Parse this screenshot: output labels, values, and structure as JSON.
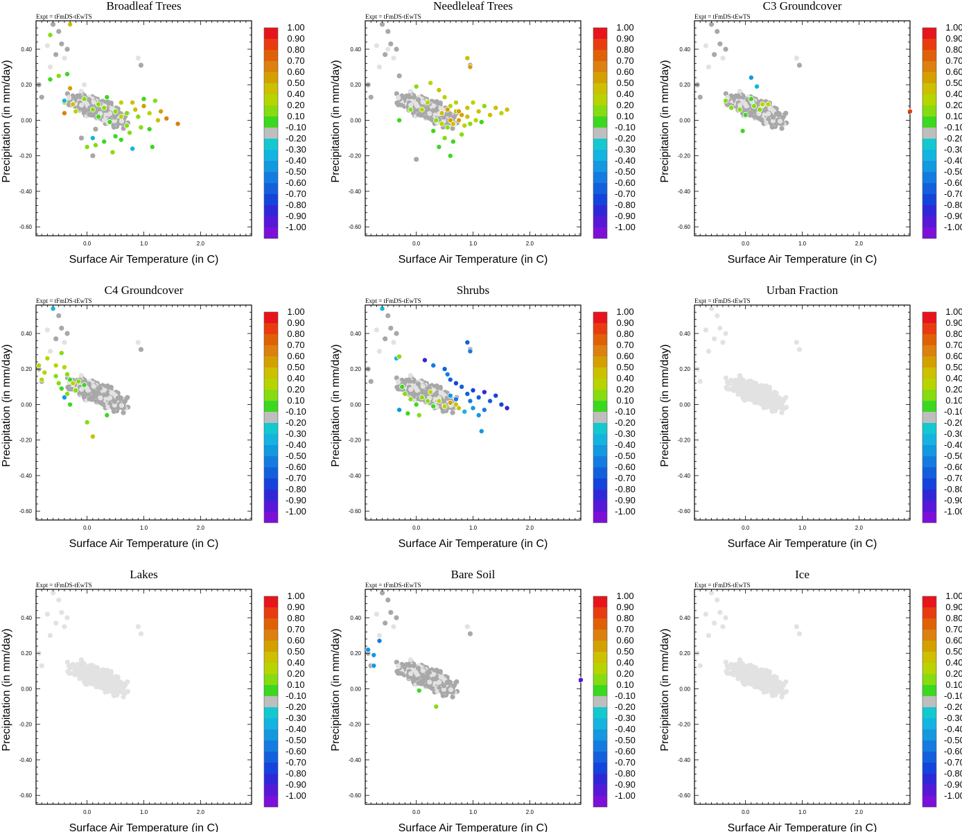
{
  "figure": {
    "expt_label": "Expt = tFmDS-tEwTS",
    "colorbar": {
      "labels": [
        "1.00",
        "0.90",
        "0.80",
        "0.70",
        "0.60",
        "0.50",
        "0.40",
        "0.20",
        "0.10",
        "-0.10",
        "-0.20",
        "-0.30",
        "-0.40",
        "-0.50",
        "-0.60",
        "-0.70",
        "-0.80",
        "-0.90",
        "-1.00"
      ],
      "colors": [
        "#e8141c",
        "#e83c10",
        "#e06008",
        "#dc8010",
        "#d4a000",
        "#ccc000",
        "#b8d400",
        "#86dc10",
        "#3cd820",
        "#bebebe",
        "#14c8d0",
        "#14b4e0",
        "#1498e0",
        "#147ce0",
        "#1460dc",
        "#1444dc",
        "#3028d8",
        "#5818d8",
        "#7c10d8"
      ]
    }
  },
  "chart_data": [
    {
      "type": "scatter",
      "title": "Broadleaf Trees",
      "xlabel": "Surface Air Temperature (in C)",
      "ylabel": "Precipitation (in mm/day)",
      "xlim": [
        -0.9,
        2.9
      ],
      "ylim": [
        -0.65,
        0.56
      ],
      "xticks": [
        "0.0",
        "1.0",
        "2.0"
      ],
      "yticks": [
        "0.40",
        "0.20",
        "0.00",
        "-0.20",
        "-0.40",
        "-0.60"
      ],
      "colorbar_range": [
        -1.0,
        1.0
      ],
      "uncolored": "grey",
      "special": [
        [
          -0.3,
          0.54,
          0.5
        ],
        [
          -0.65,
          0.48,
          0.2
        ],
        [
          -0.35,
          0.26,
          0.1
        ],
        [
          -0.5,
          0.25,
          0.2
        ],
        [
          -0.65,
          0.23,
          0.1
        ],
        [
          -0.4,
          0.1,
          0.3
        ],
        [
          -0.3,
          0.18,
          0.6
        ],
        [
          -0.2,
          0.05,
          0.4
        ],
        [
          -0.4,
          0.04,
          0.7
        ],
        [
          -0.4,
          0.11,
          -0.2
        ],
        [
          -0.25,
          0.09,
          0.5
        ],
        [
          0.1,
          0.06,
          0.2
        ],
        [
          0.2,
          0.02,
          0.1
        ],
        [
          0.3,
          0.07,
          0.15
        ],
        [
          0.4,
          -0.01,
          0.1
        ],
        [
          0.5,
          0.05,
          0.2
        ],
        [
          0.6,
          0.02,
          0.4
        ],
        [
          0.7,
          0.04,
          0.15
        ],
        [
          0.8,
          0.1,
          0.5
        ],
        [
          0.9,
          0.02,
          0.2
        ],
        [
          1.0,
          0.08,
          0.55
        ],
        [
          1.1,
          0.04,
          0.3
        ],
        [
          1.2,
          0.11,
          0.2
        ],
        [
          1.3,
          0.05,
          0.6
        ],
        [
          1.4,
          0.01,
          0.65
        ],
        [
          1.6,
          -0.02,
          0.7
        ],
        [
          0.95,
          -0.04,
          0.15
        ],
        [
          1.1,
          -0.05,
          0.1
        ],
        [
          0.75,
          -0.07,
          0.15
        ],
        [
          0.5,
          -0.09,
          0.1
        ],
        [
          0.3,
          -0.12,
          0.1
        ],
        [
          0.15,
          -0.14,
          0.15
        ],
        [
          0.45,
          -0.18,
          0.15
        ],
        [
          0.1,
          -0.1,
          -0.2
        ],
        [
          0.8,
          -0.16,
          -0.25
        ],
        [
          1.15,
          -0.15,
          0.1
        ],
        [
          0.0,
          -0.15,
          0.2
        ],
        [
          0.6,
          -0.11,
          0.1
        ],
        [
          0.85,
          0.06,
          0.45
        ],
        [
          1.0,
          0.12,
          0.1
        ],
        [
          0.2,
          0.09,
          0.15
        ],
        [
          0.35,
          0.13,
          0.1
        ],
        [
          -0.05,
          0.12,
          0.15
        ],
        [
          0.6,
          0.1,
          0.3
        ],
        [
          0.7,
          -0.03,
          0.15
        ],
        [
          1.25,
          0.0,
          0.5
        ]
      ],
      "greys": [
        [
          0.1,
          -0.2,
          0.5
        ],
        [
          -0.1,
          -0.1,
          0.8
        ],
        [
          -0.05,
          0.2,
          0.3
        ],
        [
          0.05,
          0.07,
          0.9
        ],
        [
          0.15,
          -0.05,
          0.7
        ],
        [
          0.3,
          0.0,
          0.2
        ]
      ]
    },
    {
      "type": "scatter",
      "title": "Needleleaf Trees",
      "xlabel": "Surface Air Temperature (in C)",
      "ylabel": "Precipitation (in mm/day)",
      "xlim": [
        -0.9,
        2.9
      ],
      "ylim": [
        -0.65,
        0.56
      ],
      "xticks": [
        "0.0",
        "1.0",
        "2.0"
      ],
      "yticks": [
        "0.40",
        "0.20",
        "0.00",
        "-0.20",
        "-0.40",
        "-0.60"
      ],
      "colorbar_range": [
        -1.0,
        1.0
      ],
      "uncolored": "grey",
      "special": [
        [
          0.9,
          0.35,
          0.5
        ],
        [
          0.95,
          0.3,
          0.55
        ],
        [
          0.0,
          0.19,
          0.15
        ],
        [
          0.25,
          0.21,
          0.4
        ],
        [
          0.4,
          0.17,
          0.45
        ],
        [
          0.5,
          0.13,
          0.3
        ],
        [
          0.6,
          0.08,
          0.4
        ],
        [
          0.7,
          0.05,
          0.5
        ],
        [
          0.8,
          0.03,
          0.55
        ],
        [
          0.9,
          0.07,
          0.45
        ],
        [
          1.0,
          0.1,
          0.35
        ],
        [
          1.1,
          0.05,
          0.45
        ],
        [
          1.2,
          0.08,
          0.2
        ],
        [
          1.3,
          0.03,
          0.5
        ],
        [
          1.4,
          0.07,
          0.45
        ],
        [
          1.5,
          0.04,
          0.4
        ],
        [
          1.6,
          0.06,
          0.45
        ],
        [
          0.35,
          0.0,
          0.2
        ],
        [
          0.45,
          -0.02,
          0.3
        ],
        [
          0.55,
          -0.04,
          0.15
        ],
        [
          0.65,
          -0.02,
          0.5
        ],
        [
          0.75,
          0.0,
          0.55
        ],
        [
          0.85,
          -0.03,
          0.4
        ],
        [
          0.95,
          -0.02,
          0.2
        ],
        [
          1.05,
          0.0,
          0.3
        ],
        [
          1.15,
          -0.01,
          0.1
        ],
        [
          0.3,
          -0.06,
          0.1
        ],
        [
          0.5,
          -0.1,
          0.15
        ],
        [
          0.65,
          -0.12,
          0.1
        ],
        [
          0.8,
          -0.08,
          0.2
        ],
        [
          0.4,
          -0.15,
          0.1
        ],
        [
          0.6,
          -0.2,
          0.1
        ],
        [
          0.2,
          0.1,
          0.3
        ],
        [
          -0.3,
          0.0,
          0.1
        ],
        [
          -0.1,
          0.06,
          0.2
        ],
        [
          0.1,
          0.06,
          0.4
        ],
        [
          0.55,
          0.06,
          0.55
        ],
        [
          0.7,
          0.1,
          0.35
        ],
        [
          0.45,
          0.04,
          0.5
        ],
        [
          0.75,
          0.05,
          0.6
        ],
        [
          0.9,
          0.02,
          0.5
        ],
        [
          0.6,
          0.0,
          0.55
        ]
      ],
      "greys": [
        [
          -0.5,
          0.4,
          0.1
        ],
        [
          -0.3,
          0.25,
          0.8
        ],
        [
          0.0,
          -0.22,
          0.5
        ]
      ]
    },
    {
      "type": "scatter",
      "title": "C3 Groundcover",
      "xlabel": "Surface Air Temperature (in C)",
      "ylabel": "Precipitation (in mm/day)",
      "xlim": [
        -0.9,
        2.9
      ],
      "ylim": [
        -0.65,
        0.56
      ],
      "xticks": [
        "0.0",
        "1.0",
        "2.0"
      ],
      "yticks": [
        "0.40",
        "0.20",
        "0.00",
        "-0.20",
        "-0.40",
        "-0.60"
      ],
      "colorbar_range": [
        -1.0,
        1.0
      ],
      "uncolored": "grey",
      "special": [
        [
          0.1,
          0.24,
          -0.3
        ],
        [
          0.2,
          0.19,
          -0.2
        ],
        [
          0.3,
          0.09,
          0.3
        ],
        [
          0.25,
          0.06,
          0.2
        ],
        [
          0.4,
          0.09,
          0.35
        ],
        [
          -0.35,
          0.11,
          0.15
        ],
        [
          -0.25,
          0.07,
          0.15
        ],
        [
          -0.1,
          0.06,
          0.15
        ],
        [
          0.0,
          0.03,
          0.1
        ],
        [
          0.15,
          0.08,
          0.2
        ],
        [
          0.1,
          0.12,
          0.1
        ],
        [
          -0.05,
          -0.06,
          0.1
        ],
        [
          2.9,
          0.05,
          0.85
        ]
      ],
      "greys": []
    },
    {
      "type": "scatter",
      "title": "C4 Groundcover",
      "xlabel": "Surface Air Temperature (in C)",
      "ylabel": "Precipitation (in mm/day)",
      "xlim": [
        -0.9,
        2.9
      ],
      "ylim": [
        -0.65,
        0.56
      ],
      "xticks": [
        "0.0",
        "1.0",
        "2.0"
      ],
      "yticks": [
        "0.40",
        "0.20",
        "0.00",
        "-0.20",
        "-0.40",
        "-0.60"
      ],
      "colorbar_range": [
        -1.0,
        1.0
      ],
      "uncolored": "grey",
      "special": [
        [
          -0.6,
          0.54,
          -0.2
        ],
        [
          -0.85,
          0.22,
          0.3
        ],
        [
          -0.75,
          0.18,
          0.3
        ],
        [
          -0.7,
          0.26,
          0.4
        ],
        [
          -0.55,
          0.22,
          0.3
        ],
        [
          -0.8,
          0.14,
          0.35
        ],
        [
          -0.45,
          0.29,
          0.15
        ],
        [
          -0.4,
          0.21,
          0.3
        ],
        [
          -0.35,
          0.17,
          0.2
        ],
        [
          -0.3,
          0.14,
          0.1
        ],
        [
          -0.25,
          0.12,
          0.3
        ],
        [
          -0.2,
          0.08,
          0.2
        ],
        [
          -0.15,
          0.13,
          0.15
        ],
        [
          -0.05,
          0.11,
          0.1
        ],
        [
          -0.35,
          0.06,
          0.2
        ],
        [
          -0.45,
          0.09,
          0.1
        ],
        [
          -0.4,
          0.04,
          -0.3
        ],
        [
          -0.3,
          0.0,
          0.1
        ],
        [
          0.0,
          -0.1,
          0.15
        ],
        [
          0.1,
          -0.18,
          0.45
        ],
        [
          0.35,
          -0.06,
          0.1
        ],
        [
          -0.55,
          0.16,
          0.2
        ],
        [
          -0.5,
          0.12,
          0.15
        ]
      ],
      "greys": []
    },
    {
      "type": "scatter",
      "title": "Shrubs",
      "xlabel": "Surface Air Temperature (in C)",
      "ylabel": "Precipitation (in mm/day)",
      "xlim": [
        -0.9,
        2.9
      ],
      "ylim": [
        -0.65,
        0.56
      ],
      "xticks": [
        "0.0",
        "1.0",
        "2.0"
      ],
      "yticks": [
        "0.40",
        "0.20",
        "0.00",
        "-0.20",
        "-0.40",
        "-0.60"
      ],
      "colorbar_range": [
        -1.0,
        1.0
      ],
      "uncolored": "grey",
      "special": [
        [
          -0.6,
          0.54,
          -0.2
        ],
        [
          -0.35,
          0.26,
          -0.2
        ],
        [
          -0.3,
          0.27,
          0.2
        ],
        [
          0.15,
          0.25,
          -0.7
        ],
        [
          0.3,
          0.22,
          -0.4
        ],
        [
          0.9,
          0.35,
          -0.55
        ],
        [
          0.95,
          0.3,
          -0.45
        ],
        [
          0.5,
          0.2,
          -0.5
        ],
        [
          0.55,
          0.17,
          -0.45
        ],
        [
          0.6,
          0.14,
          -0.5
        ],
        [
          0.7,
          0.12,
          -0.6
        ],
        [
          0.8,
          0.1,
          -0.55
        ],
        [
          0.9,
          0.06,
          -0.5
        ],
        [
          1.0,
          0.08,
          -0.6
        ],
        [
          1.1,
          0.04,
          -0.5
        ],
        [
          1.2,
          0.07,
          -0.7
        ],
        [
          1.3,
          0.02,
          -0.5
        ],
        [
          1.4,
          0.05,
          -0.65
        ],
        [
          1.5,
          0.0,
          -0.6
        ],
        [
          1.6,
          -0.02,
          -0.7
        ],
        [
          1.0,
          -0.02,
          -0.3
        ],
        [
          1.1,
          -0.06,
          -0.35
        ],
        [
          1.2,
          -0.03,
          -0.45
        ],
        [
          0.85,
          -0.04,
          -0.25
        ],
        [
          0.95,
          0.02,
          -0.4
        ],
        [
          1.15,
          -0.15,
          -0.3
        ],
        [
          0.7,
          0.03,
          -0.4
        ],
        [
          0.6,
          0.05,
          -0.3
        ],
        [
          -0.3,
          -0.03,
          -0.3
        ],
        [
          -0.2,
          0.06,
          0.2
        ],
        [
          -0.1,
          0.03,
          0.15
        ],
        [
          0.0,
          0.0,
          0.1
        ],
        [
          0.1,
          0.04,
          0.2
        ],
        [
          0.2,
          0.02,
          0.15
        ],
        [
          0.3,
          -0.01,
          0.1
        ],
        [
          0.4,
          0.02,
          0.35
        ],
        [
          0.5,
          -0.01,
          0.3
        ],
        [
          0.6,
          0.01,
          0.55
        ],
        [
          0.7,
          0.0,
          0.5
        ],
        [
          -0.15,
          -0.05,
          0.1
        ],
        [
          0.05,
          -0.06,
          0.15
        ],
        [
          -0.25,
          0.1,
          0.1
        ],
        [
          0.25,
          0.07,
          0.4
        ],
        [
          0.75,
          -0.02,
          0.45
        ]
      ],
      "greys": []
    },
    {
      "type": "scatter",
      "title": "Urban Fraction",
      "xlabel": "Surface Air Temperature (in C)",
      "ylabel": "Precipitation (in mm/day)",
      "xlim": [
        -0.9,
        2.9
      ],
      "ylim": [
        -0.65,
        0.56
      ],
      "xticks": [
        "0.0",
        "1.0",
        "2.0"
      ],
      "yticks": [
        "0.40",
        "0.20",
        "0.00",
        "-0.20",
        "-0.40",
        "-0.60"
      ],
      "colorbar_range": [
        -1.0,
        1.0
      ],
      "uncolored": "light",
      "special": [],
      "greys": []
    },
    {
      "type": "scatter",
      "title": "Lakes",
      "xlabel": "Surface Air Temperature (in C)",
      "ylabel": "Precipitation (in mm/day)",
      "xlim": [
        -0.9,
        2.9
      ],
      "ylim": [
        -0.65,
        0.56
      ],
      "xticks": [
        "0.0",
        "1.0",
        "2.0"
      ],
      "yticks": [
        "0.40",
        "0.20",
        "0.00",
        "-0.20",
        "-0.40",
        "-0.60"
      ],
      "colorbar_range": [
        -1.0,
        1.0
      ],
      "uncolored": "light",
      "special": [],
      "greys": []
    },
    {
      "type": "scatter",
      "title": "Bare Soil",
      "xlabel": "Surface Air Temperature (in C)",
      "ylabel": "Precipitation (in mm/day)",
      "xlim": [
        -0.9,
        2.9
      ],
      "ylim": [
        -0.65,
        0.56
      ],
      "xticks": [
        "0.0",
        "1.0",
        "2.0"
      ],
      "yticks": [
        "0.40",
        "0.20",
        "0.00",
        "-0.20",
        "-0.40",
        "-0.60"
      ],
      "colorbar_range": [
        -1.0,
        1.0
      ],
      "uncolored": "grey",
      "special": [
        [
          -0.65,
          0.27,
          -0.4
        ],
        [
          -0.75,
          0.19,
          -0.3
        ],
        [
          -0.75,
          0.13,
          -0.35
        ],
        [
          -0.85,
          0.22,
          -0.3
        ],
        [
          0.05,
          -0.01,
          0.1
        ],
        [
          0.35,
          -0.1,
          0.2
        ],
        [
          2.9,
          0.05,
          -0.85
        ]
      ],
      "greys": []
    },
    {
      "type": "scatter",
      "title": "Ice",
      "xlabel": "Surface Air Temperature (in C)",
      "ylabel": "Precipitation (in mm/day)",
      "xlim": [
        -0.9,
        2.9
      ],
      "ylim": [
        -0.65,
        0.56
      ],
      "xticks": [
        "0.0",
        "1.0",
        "2.0"
      ],
      "yticks": [
        "0.40",
        "0.20",
        "0.00",
        "-0.20",
        "-0.40",
        "-0.60"
      ],
      "colorbar_range": [
        -1.0,
        1.0
      ],
      "uncolored": "light",
      "special": [],
      "greys": []
    }
  ]
}
